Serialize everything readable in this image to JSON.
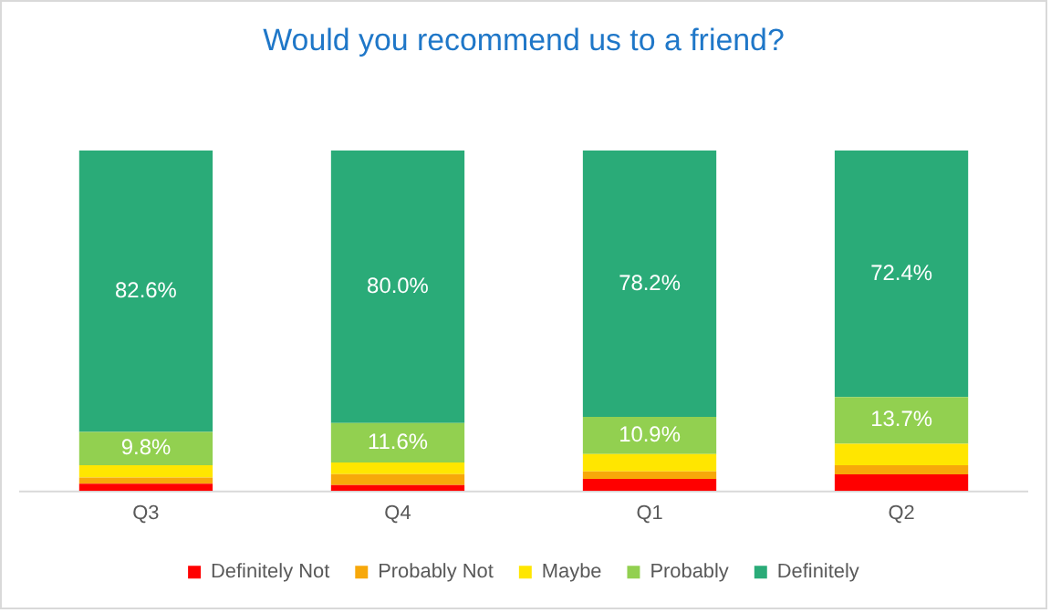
{
  "chart_data": {
    "type": "bar",
    "title": "Would you recommend us to a friend?",
    "categories": [
      "Q3",
      "Q4",
      "Q1",
      "Q2"
    ],
    "stacked": true,
    "legend": "bottom",
    "grid": false,
    "series": [
      {
        "name": "Definitely Not",
        "color": "#ff0000",
        "values": [
          2.2,
          1.8,
          3.6,
          4.9
        ]
      },
      {
        "name": "Probably Not",
        "color": "#f7a80a",
        "values": [
          1.8,
          3.2,
          2.2,
          2.7
        ]
      },
      {
        "name": "Maybe",
        "color": "#ffe600",
        "values": [
          3.6,
          3.4,
          5.1,
          6.3
        ]
      },
      {
        "name": "Probably",
        "color": "#92d050",
        "values": [
          9.8,
          11.6,
          10.9,
          13.7
        ],
        "value_labels": [
          "9.8%",
          "11.6%",
          "10.9%",
          "13.7%"
        ]
      },
      {
        "name": "Definitely",
        "color": "#2aab78",
        "values": [
          82.6,
          80.0,
          78.2,
          72.4
        ],
        "value_labels": [
          "82.6%",
          "80.0%",
          "78.2%",
          "72.4%"
        ]
      }
    ]
  }
}
